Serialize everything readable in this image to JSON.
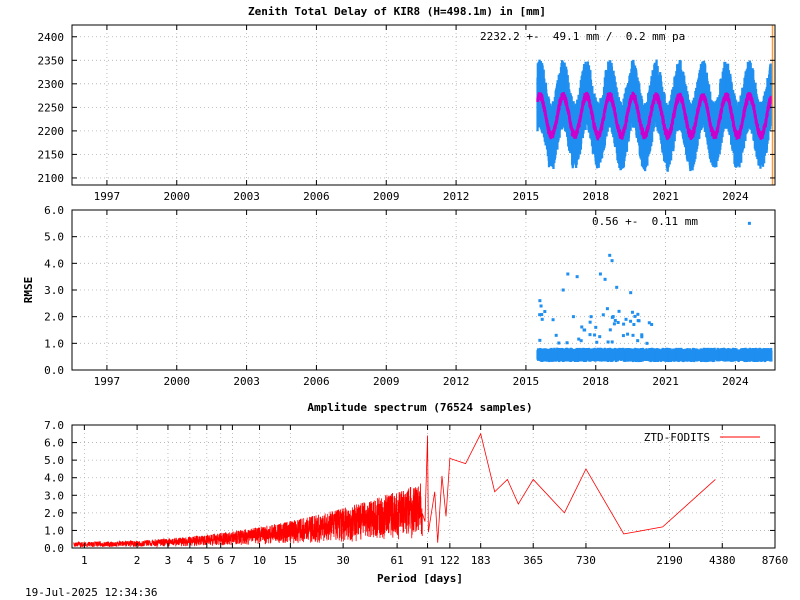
{
  "chart_data": [
    {
      "type": "scatter",
      "title": "Zenith Total Delay of KIR8 (H=498.1m) in [mm]",
      "annotation": "2232.2 +-  49.1 mm /  0.2 mm pa",
      "xlim": [
        1995.5,
        2025.7
      ],
      "ylim": [
        2085,
        2425
      ],
      "x_ticks": [
        1997,
        2000,
        2003,
        2006,
        2009,
        2012,
        2015,
        2018,
        2021,
        2024
      ],
      "y_ticks": [
        2100,
        2150,
        2200,
        2250,
        2300,
        2350,
        2400
      ],
      "grid": true,
      "data_start": 2015.5,
      "data_end": 2025.55,
      "series": [
        {
          "role": "observations",
          "color": "#1f8ff0",
          "mean": 2232.2,
          "seasonal_amplitude": 45,
          "scatter_range": 75
        },
        {
          "role": "model",
          "color": "#cc00cc",
          "mean": 2232.2,
          "seasonal_amplitude": 42
        }
      ],
      "seasonal_peak_fraction": 0.6
    },
    {
      "type": "scatter",
      "ylabel": "RMSE",
      "annotation": "0.56 +-  0.11 mm",
      "xlim": [
        1995.5,
        2025.7
      ],
      "ylim": [
        0,
        6
      ],
      "x_ticks": [
        1997,
        2000,
        2003,
        2006,
        2009,
        2012,
        2015,
        2018,
        2021,
        2024
      ],
      "y_ticks": [
        0.0,
        1.0,
        2.0,
        3.0,
        4.0,
        5.0,
        6.0
      ],
      "grid": true,
      "color": "#1f8ff0",
      "typical": 0.56,
      "spread": 0.11,
      "outliers": [
        [
          2015.6,
          2.6
        ],
        [
          2015.65,
          2.4
        ],
        [
          2015.7,
          1.9
        ],
        [
          2016.3,
          1.3
        ],
        [
          2016.6,
          3.0
        ],
        [
          2016.8,
          3.6
        ],
        [
          2017.2,
          3.5
        ],
        [
          2017.5,
          1.5
        ],
        [
          2017.8,
          2.0
        ],
        [
          2018.0,
          1.6
        ],
        [
          2018.2,
          3.6
        ],
        [
          2018.4,
          3.4
        ],
        [
          2018.5,
          2.3
        ],
        [
          2018.6,
          4.3
        ],
        [
          2018.7,
          4.1
        ],
        [
          2018.9,
          3.1
        ],
        [
          2019.0,
          2.2
        ],
        [
          2019.3,
          1.9
        ],
        [
          2019.5,
          2.9
        ],
        [
          2019.6,
          1.3
        ],
        [
          2019.8,
          1.1
        ],
        [
          2020.2,
          1.0
        ],
        [
          2024.6,
          5.5
        ]
      ]
    },
    {
      "type": "line",
      "title": "Amplitude spectrum (76524 samples)",
      "xlabel": "Period [days]",
      "x_scale": "log",
      "xlim": [
        0.85,
        8760
      ],
      "ylim": [
        0,
        7
      ],
      "x_ticks": [
        "1",
        "2",
        "3",
        "4",
        "5",
        "6",
        "7",
        "10",
        "15",
        "30",
        "61",
        "91",
        "122",
        "183",
        "365",
        "730",
        "2190",
        "4380",
        "8760"
      ],
      "y_ticks": [
        0.0,
        1.0,
        2.0,
        3.0,
        4.0,
        5.0,
        6.0,
        7.0
      ],
      "grid": true,
      "legend_position": "top-right",
      "series": [
        {
          "name": "ZTD-FODITS",
          "color": "#ff0000",
          "peaks": [
            [
              91,
              6.4
            ],
            [
              122,
              5.1
            ],
            [
              150,
              4.8
            ],
            [
              183,
              6.5
            ],
            [
              220,
              3.2
            ],
            [
              260,
              3.9
            ],
            [
              300,
              2.5
            ],
            [
              365,
              3.9
            ],
            [
              550,
              2.0
            ],
            [
              730,
              4.5
            ],
            [
              1200,
              0.8
            ],
            [
              2000,
              1.2
            ],
            [
              4000,
              3.9
            ]
          ]
        }
      ]
    }
  ],
  "footer_timestamp": "19-Jul-2025 12:34:36"
}
